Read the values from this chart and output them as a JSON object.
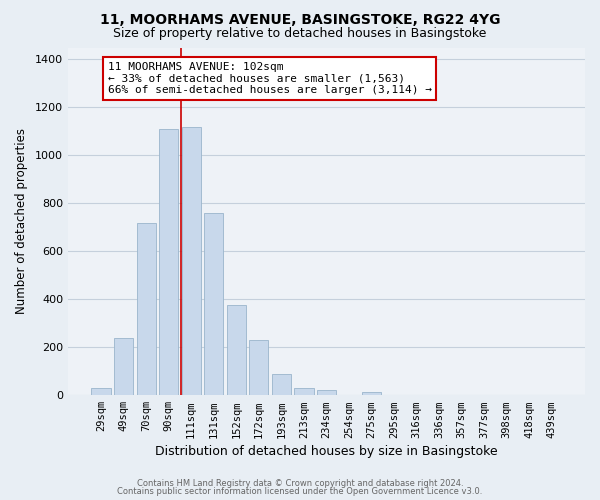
{
  "title1": "11, MOORHAMS AVENUE, BASINGSTOKE, RG22 4YG",
  "title2": "Size of property relative to detached houses in Basingstoke",
  "xlabel": "Distribution of detached houses by size in Basingstoke",
  "ylabel": "Number of detached properties",
  "bar_labels": [
    "29sqm",
    "49sqm",
    "70sqm",
    "90sqm",
    "111sqm",
    "131sqm",
    "152sqm",
    "172sqm",
    "193sqm",
    "213sqm",
    "234sqm",
    "254sqm",
    "275sqm",
    "295sqm",
    "316sqm",
    "336sqm",
    "357sqm",
    "377sqm",
    "398sqm",
    "418sqm",
    "439sqm"
  ],
  "bar_values": [
    30,
    240,
    720,
    1110,
    1120,
    760,
    375,
    230,
    90,
    30,
    20,
    0,
    15,
    0,
    0,
    0,
    0,
    0,
    0,
    0,
    0
  ],
  "bar_color": "#c8d8eb",
  "bar_edge_color": "#9ab5cc",
  "ylim": [
    0,
    1450
  ],
  "yticks": [
    0,
    200,
    400,
    600,
    800,
    1000,
    1200,
    1400
  ],
  "annotation_line1": "11 MOORHAMS AVENUE: 102sqm",
  "annotation_line2": "← 33% of detached houses are smaller (1,563)",
  "annotation_line3": "66% of semi-detached houses are larger (3,114) →",
  "red_line_x": 3.55,
  "footer1": "Contains HM Land Registry data © Crown copyright and database right 2024.",
  "footer2": "Contains public sector information licensed under the Open Government Licence v3.0.",
  "background_color": "#e8eef4",
  "plot_bg_color": "#eef2f7",
  "grid_color": "#c5d0dc",
  "title1_fontsize": 10,
  "title2_fontsize": 9
}
